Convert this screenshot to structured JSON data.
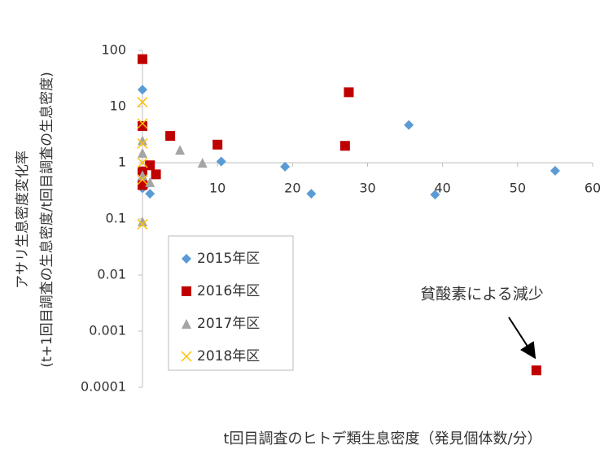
{
  "chart_data": {
    "type": "scatter",
    "y_label_lines": [
      "アサリ生息密度変化率",
      "(t+1回目調査の生息密度/t回目調査の生息密度)"
    ],
    "x_label": "t回目調査のヒトデ類生息密度（発見個体数/分）",
    "annotation": "貧酸素による減少",
    "xlim": [
      0,
      60
    ],
    "xticks": [
      10,
      20,
      30,
      40,
      50,
      60
    ],
    "ylim": [
      0.0001,
      100
    ],
    "yticks": [
      0.0001,
      0.001,
      0.01,
      0.1,
      1,
      10,
      100
    ],
    "y_log": true,
    "x_axis_crosses_y": 1,
    "legend": "lower left",
    "series": [
      {
        "name": "2015年区",
        "color": "#5b9bd5",
        "marker": "diamond",
        "x": [
          0,
          0,
          1,
          0.5,
          10.5,
          19,
          22.5,
          35.5,
          39,
          55
        ],
        "values": [
          20,
          0.35,
          0.28,
          0.4,
          1.05,
          0.85,
          0.28,
          4.7,
          0.27,
          0.72
        ]
      },
      {
        "name": "2016年区",
        "color": "#c00000",
        "marker": "square",
        "x": [
          0,
          0,
          0,
          0,
          1,
          1.8,
          3.7,
          10,
          27,
          27.5,
          52.5
        ],
        "values": [
          70,
          4.5,
          0.4,
          0.7,
          0.9,
          0.62,
          3,
          2.1,
          2,
          18,
          0.0002
        ]
      },
      {
        "name": "2017年区",
        "color": "#a5a5a5",
        "marker": "triangle",
        "x": [
          0,
          0,
          0,
          1,
          5,
          8,
          0
        ],
        "values": [
          2.5,
          1.5,
          0.6,
          0.45,
          1.7,
          1,
          0.09
        ]
      },
      {
        "name": "2018年区",
        "color": "#ffc000",
        "marker": "x",
        "x": [
          0,
          0,
          0,
          0,
          0,
          0
        ],
        "values": [
          12,
          5,
          2.2,
          1,
          0.08,
          0.5
        ]
      }
    ]
  }
}
